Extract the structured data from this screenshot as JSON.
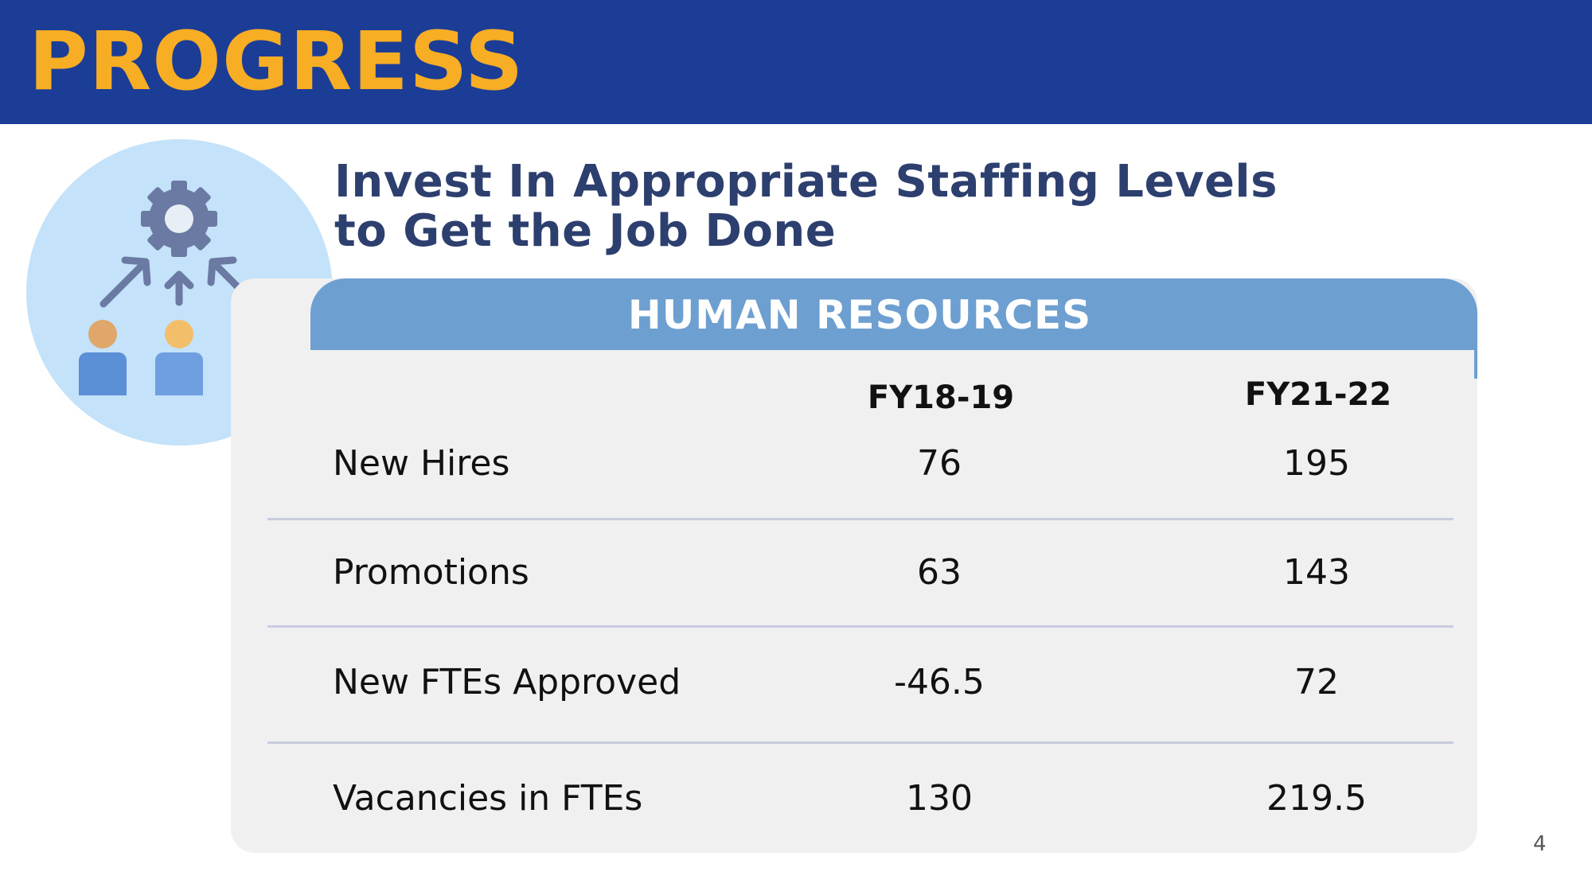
{
  "header": {
    "title": "PROGRESS"
  },
  "subtitle": {
    "line1": "Invest In Appropriate Staffing Levels",
    "line2": "to Get the Job Done"
  },
  "table": {
    "title": "HUMAN RESOURCES",
    "columns": [
      "FY18-19",
      "FY21-22"
    ],
    "rows": [
      {
        "label": "New Hires",
        "values": [
          "76",
          "195"
        ]
      },
      {
        "label": "Promotions",
        "values": [
          "63",
          "143"
        ]
      },
      {
        "label": "New FTEs Approved",
        "values": [
          "-46.5",
          "72"
        ]
      },
      {
        "label": "Vacancies in FTEs",
        "values": [
          "130",
          "219.5"
        ]
      }
    ]
  },
  "icon": {
    "name": "team-gear-icon"
  },
  "colors": {
    "header_bg": "#1c3d96",
    "header_text": "#f7ad24",
    "subtitle_text": "#2d3f6e",
    "table_header_bg": "#6d9fd1",
    "panel_bg": "#f0f0f0",
    "icon_circle_bg": "#c4e2f9"
  },
  "footer": {
    "page_number": "4"
  }
}
